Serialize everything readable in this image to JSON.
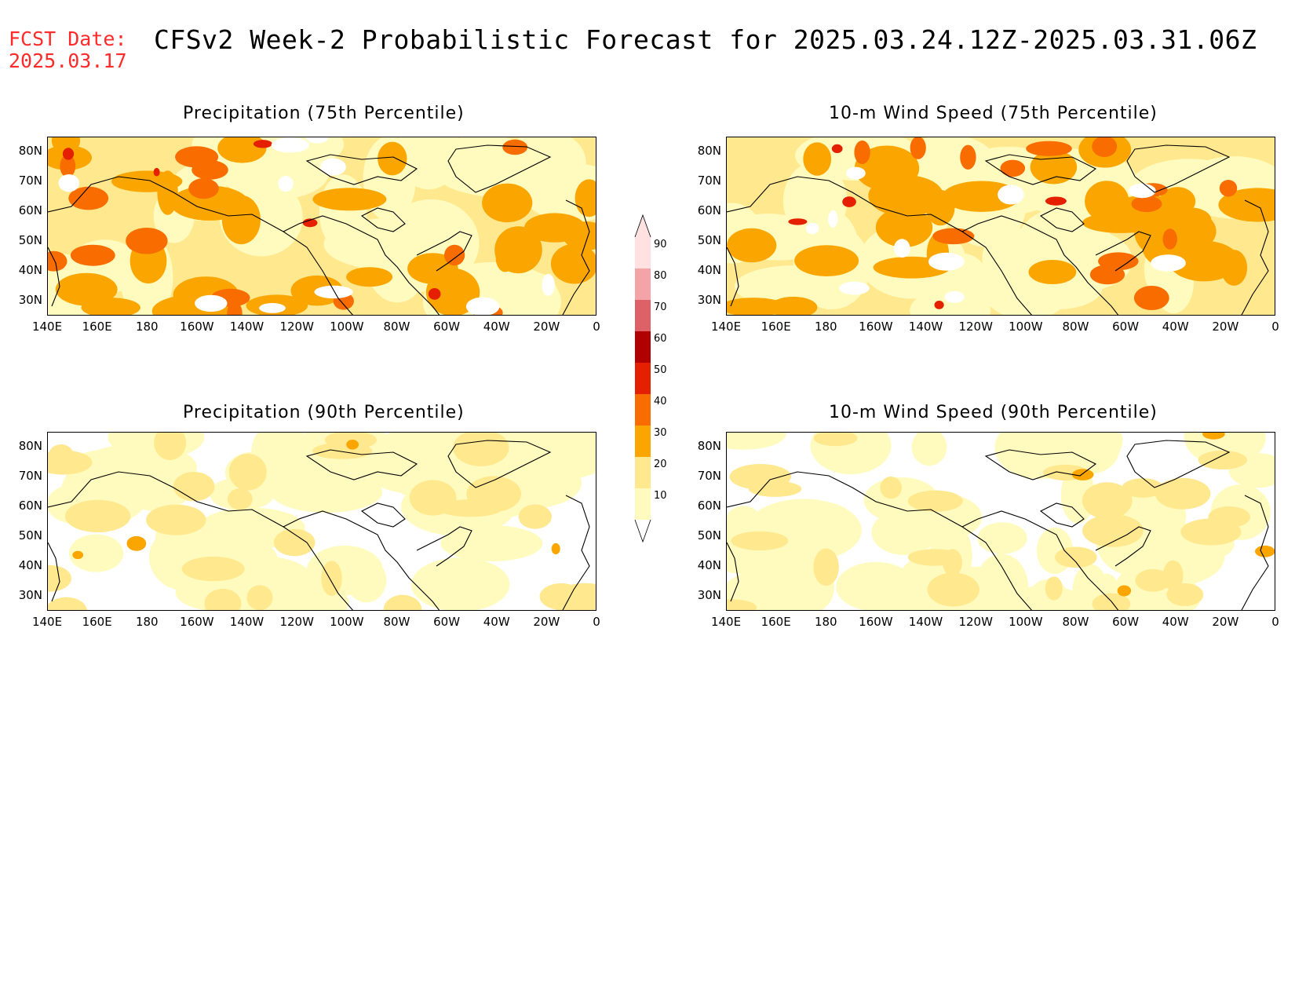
{
  "header": {
    "fcst_label": "FCST Date:",
    "fcst_date": "2025.03.17",
    "title": "CFSv2 Week-2 Probabilistic Forecast for 2025.03.24.12Z-2025.03.31.06Z"
  },
  "panels": [
    {
      "title": "Precipitation (75th Percentile)",
      "level": "high"
    },
    {
      "title": "10-m Wind Speed (75th Percentile)",
      "level": "high"
    },
    {
      "title": "Precipitation (90th Percentile)",
      "level": "low"
    },
    {
      "title": "10-m Wind Speed (90th Percentile)",
      "level": "low"
    }
  ],
  "axes": {
    "lat_labels": [
      "80N",
      "70N",
      "60N",
      "50N",
      "40N",
      "30N"
    ],
    "lon_labels": [
      "140E",
      "160E",
      "180",
      "160W",
      "140W",
      "120W",
      "100W",
      "80W",
      "60W",
      "40W",
      "20W",
      "0"
    ]
  },
  "colorbar": {
    "levels": [
      "90",
      "80",
      "70",
      "60",
      "50",
      "40",
      "30",
      "20",
      "10"
    ],
    "colors": [
      "#ffe1e1",
      "#f4a3a8",
      "#de6167",
      "#b00000",
      "#e42000",
      "#f86c00",
      "#fba600",
      "#ffe88e",
      "#fffbbe"
    ]
  }
}
